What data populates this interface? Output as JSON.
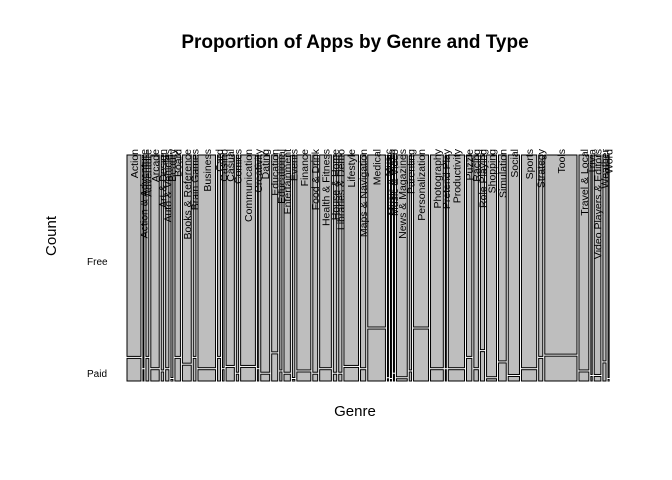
{
  "chart_data": {
    "type": "mosaic",
    "title": "Proportion of Apps by Genre and Type",
    "xlabel": "Genre",
    "ylabel": "Count",
    "levels": [
      "Paid",
      "Free"
    ],
    "colors": {
      "Paid": "#bebebe",
      "Free": "#bebebe"
    },
    "categories": [
      "Action",
      "Action & Adventure",
      "Adventure",
      "Arcade",
      "Art & Design",
      "Auto & Vehicles",
      "Beauty",
      "Board",
      "Books & Reference",
      "Brain Games",
      "Business",
      "Card",
      "Casino",
      "Casual",
      "Comics",
      "Communication",
      "Creativity",
      "Dating",
      "Education",
      "Educational",
      "Entertainment",
      "Events",
      "Finance",
      "Food & Drink",
      "Health & Fitness",
      "House & Home",
      "Libraries & Demo",
      "Lifestyle",
      "Maps & Navigation",
      "Medical",
      "Music",
      "Music & Audio",
      "Music & Video",
      "News & Magazines",
      "Parenting",
      "Personalization",
      "Photography",
      "Pretend Play",
      "Productivity",
      "Puzzle",
      "Racing",
      "Role Playing",
      "Shopping",
      "Simulation",
      "Social",
      "Sports",
      "Strategy",
      "Tools",
      "Travel & Local",
      "Trivia",
      "Video Players & Editors",
      "Weather",
      "Word"
    ],
    "series": [
      {
        "name": "Free",
        "values": [
          0.9,
          0.95,
          0.9,
          0.95,
          0.96,
          0.95,
          1.0,
          0.9,
          0.93,
          0.9,
          0.95,
          0.9,
          0.95,
          0.94,
          0.97,
          0.94,
          0.95,
          0.97,
          0.88,
          0.96,
          0.97,
          1.0,
          0.96,
          0.97,
          0.95,
          0.97,
          0.97,
          0.94,
          0.95,
          0.77,
          0.99,
          1.0,
          0.97,
          0.99,
          0.96,
          0.77,
          0.95,
          0.95,
          0.95,
          0.9,
          0.95,
          0.87,
          0.99,
          0.92,
          0.98,
          0.95,
          0.9,
          0.89,
          0.96,
          0.98,
          0.98,
          0.92,
          1.0
        ]
      },
      {
        "name": "Paid",
        "values": [
          0.1,
          0.05,
          0.1,
          0.05,
          0.04,
          0.05,
          0.0,
          0.1,
          0.07,
          0.1,
          0.05,
          0.1,
          0.05,
          0.06,
          0.03,
          0.06,
          0.05,
          0.03,
          0.12,
          0.04,
          0.03,
          0.0,
          0.04,
          0.03,
          0.05,
          0.03,
          0.03,
          0.06,
          0.05,
          0.23,
          0.01,
          0.0,
          0.03,
          0.01,
          0.04,
          0.23,
          0.05,
          0.05,
          0.05,
          0.1,
          0.05,
          0.13,
          0.01,
          0.08,
          0.02,
          0.05,
          0.1,
          0.11,
          0.04,
          0.02,
          0.02,
          0.08,
          0.0
        ]
      }
    ],
    "counts": [
      365,
      18,
      75,
      220,
      64,
      85,
      53,
      144,
      231,
      71,
      460,
      77,
      42,
      216,
      60,
      387,
      35,
      234,
      158,
      59,
      168,
      64,
      366,
      127,
      306,
      88,
      84,
      382,
      137,
      463,
      22,
      5,
      18,
      283,
      60,
      392,
      335,
      12,
      424,
      140,
      119,
      109,
      260,
      202,
      295,
      398,
      107,
      843,
      258,
      36,
      175,
      82,
      29
    ],
    "grid": false,
    "legend": "none"
  }
}
